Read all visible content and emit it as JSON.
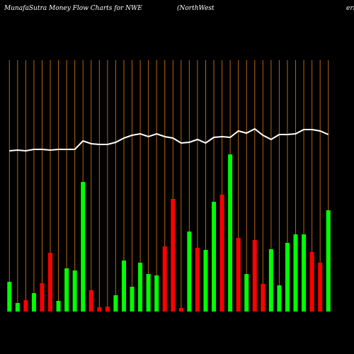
{
  "chart_data": {
    "type": "bar",
    "title": "MunafaSutra  Money Flow  Charts for NWE",
    "subtitle": "(NorthWest",
    "subtitle_end": "ern",
    "categories": [
      null,
      null,
      null,
      null,
      null,
      null,
      null,
      null,
      null,
      null,
      null,
      null,
      null,
      null,
      null,
      null,
      null,
      null,
      null,
      null,
      null,
      null,
      null,
      null,
      null,
      null,
      null,
      null,
      null,
      null,
      null,
      null,
      null,
      null,
      null,
      null,
      null,
      null,
      null,
      null
    ],
    "values": [
      42,
      12,
      16,
      26,
      40,
      83,
      15,
      61,
      58,
      183,
      30,
      6,
      7,
      23,
      72,
      35,
      69,
      53,
      51,
      92,
      159,
      5,
      113,
      90,
      87,
      155,
      165,
      222,
      104,
      53,
      101,
      39,
      88,
      37,
      97,
      109,
      109,
      84,
      69,
      143
    ],
    "colors": [
      "#00ff00",
      "#00ff00",
      "#ff0000",
      "#00ff00",
      "#ff0000",
      "#ff0000",
      "#00ff00",
      "#00ff00",
      "#00ff00",
      "#00ff00",
      "#ff0000",
      "#ff0000",
      "#ff0000",
      "#00ff00",
      "#00ff00",
      "#00ff00",
      "#00ff00",
      "#00ff00",
      "#00ff00",
      "#ff0000",
      "#ff0000",
      "#ff0000",
      "#00ff00",
      "#ff0000",
      "#00ff00",
      "#00ff00",
      "#ff0000",
      "#00ff00",
      "#ff0000",
      "#00ff00",
      "#ff0000",
      "#ff0000",
      "#00ff00",
      "#00ff00",
      "#00ff00",
      "#00ff00",
      "#00ff00",
      "#ff0000",
      "#ff0000",
      "#00ff00"
    ],
    "line": {
      "color": "#ffffff",
      "values": [
        227,
        228,
        227,
        229,
        229,
        228,
        229,
        229,
        229,
        241,
        237,
        236,
        236,
        239,
        245,
        249,
        251,
        247,
        251,
        247,
        245,
        238,
        239,
        243,
        238,
        246,
        247,
        246,
        255,
        252,
        258,
        249,
        243,
        250,
        250,
        251,
        257,
        257,
        255,
        250
      ]
    },
    "grid_color": "#b8650f",
    "ylim": [
      0,
      440
    ]
  }
}
